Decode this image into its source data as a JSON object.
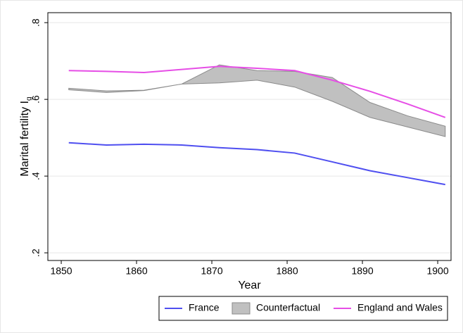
{
  "chart_data": {
    "type": "line",
    "xlabel": "Year",
    "ylabel": {
      "text": "Marital fertility I",
      "subscript": "g"
    },
    "x": [
      1851,
      1856,
      1861,
      1866,
      1871,
      1876,
      1881,
      1886,
      1891,
      1896,
      1901
    ],
    "series": [
      {
        "name": "France",
        "color": "#4f4ff0",
        "values": [
          0.487,
          0.481,
          0.483,
          0.481,
          0.474,
          0.469,
          0.46,
          0.437,
          0.414,
          0.396,
          0.378
        ]
      },
      {
        "name": "Counterfactual",
        "type": "band",
        "color": "#c0c0c0",
        "lower": [
          0.625,
          0.618,
          0.623,
          0.64,
          0.643,
          0.65,
          0.632,
          0.595,
          0.553,
          0.528,
          0.503
        ],
        "upper": [
          0.629,
          0.622,
          0.624,
          0.64,
          0.69,
          0.675,
          0.673,
          0.657,
          0.592,
          0.557,
          0.53
        ]
      },
      {
        "name": "England and Wales",
        "color": "#e64ee6",
        "values": [
          0.675,
          0.673,
          0.67,
          0.678,
          0.686,
          0.681,
          0.675,
          0.65,
          0.621,
          0.588,
          0.553
        ]
      }
    ],
    "xlim": [
      1848.22,
      1901.77
    ],
    "xticks": [
      1850,
      1860,
      1870,
      1880,
      1890,
      1900
    ],
    "ylim": [
      0.18,
      0.826
    ],
    "yticks": [
      {
        "value": 0.2,
        "label": ".2"
      },
      {
        "value": 0.4,
        "label": ".4"
      },
      {
        "value": 0.6,
        "label": ".6"
      },
      {
        "value": 0.8,
        "label": ".8"
      }
    ],
    "grid": true,
    "legend": "bottom"
  }
}
